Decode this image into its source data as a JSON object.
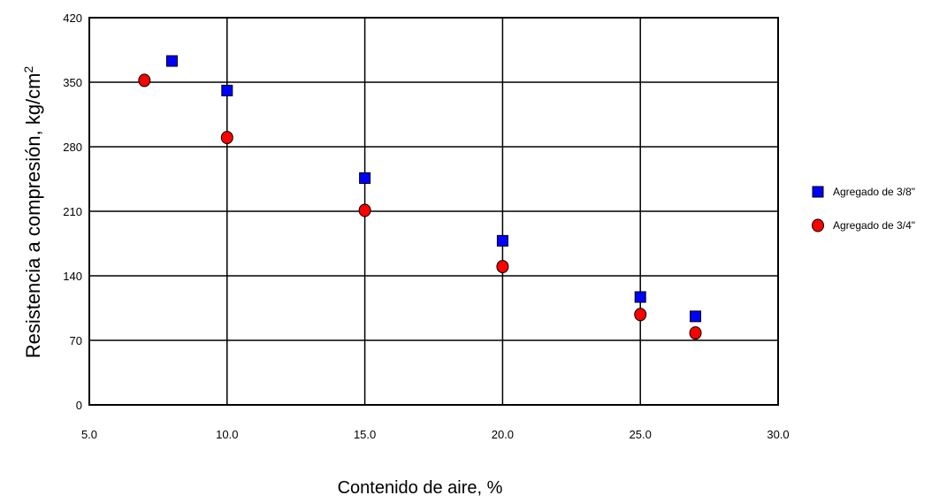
{
  "chart_data": {
    "type": "scatter",
    "title": "",
    "xlabel": "Contenido de aire, %",
    "ylabel": "Resistencia a compresión, kg/cm",
    "ylabel_superscript": "2",
    "xlim": [
      5.0,
      30.0
    ],
    "ylim": [
      0,
      420
    ],
    "x_ticks": [
      "5.0",
      "10.0",
      "15.0",
      "20.0",
      "25.0",
      "30.0"
    ],
    "y_ticks": [
      "0",
      "70",
      "140",
      "210",
      "280",
      "350",
      "420"
    ],
    "x_tick_values": [
      5,
      10,
      15,
      20,
      25,
      30
    ],
    "y_tick_values": [
      0,
      70,
      140,
      210,
      280,
      350,
      420
    ],
    "grid": true,
    "legend_position": "right",
    "series": [
      {
        "name": "Agregado de 3/8\"",
        "marker": "square",
        "color": "#0000ff",
        "points": [
          [
            8.0,
            373
          ],
          [
            10.0,
            341
          ],
          [
            15.0,
            246
          ],
          [
            20.0,
            178
          ],
          [
            25.0,
            117
          ],
          [
            27.0,
            96
          ]
        ]
      },
      {
        "name": "Agregado de 3/4\"",
        "marker": "circle",
        "color": "#ff0000",
        "points": [
          [
            7.0,
            352
          ],
          [
            10.0,
            290
          ],
          [
            15.0,
            211
          ],
          [
            20.0,
            150
          ],
          [
            25.0,
            98
          ],
          [
            27.0,
            78
          ]
        ]
      }
    ]
  }
}
